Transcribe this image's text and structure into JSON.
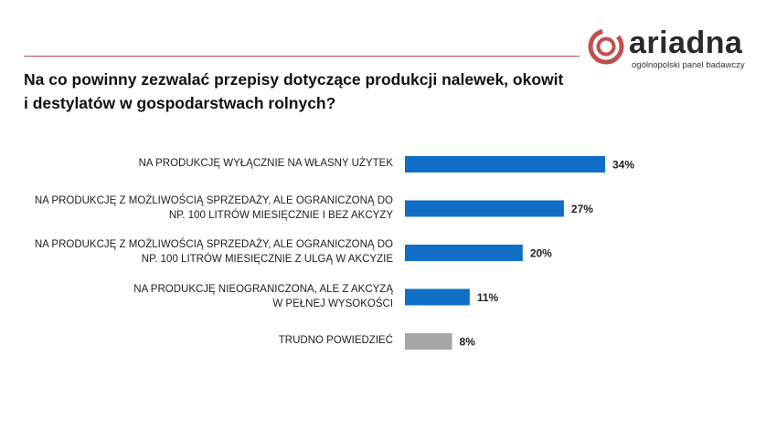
{
  "brand": {
    "name": "ariadna",
    "tagline": "ogólnopolski panel badawczy",
    "accent_color": "#c0504d"
  },
  "question": {
    "line1": "Na co powinny zezwalać przepisy dotyczące produkcji nalewek, okowit",
    "line2": "i destylatów w gospodarstwach rolnych?"
  },
  "chart_data": {
    "type": "bar",
    "orientation": "horizontal",
    "title": "Na co powinny zezwalać przepisy dotyczące produkcji nalewek, okowit i destylatów w gospodarstwach rolnych?",
    "categories": [
      [
        "NA PRODUKCJĘ WYŁĄCZNIE NA WŁASNY UŻYTEK"
      ],
      [
        "NA PRODUKCJĘ Z MOŻLIWOŚCIĄ SPRZEDAŻY, ALE OGRANICZONĄ DO",
        "NP. 100 LITRÓW MIESIĘCZNIE I BEZ AKCYZY"
      ],
      [
        "NA PRODUKCJĘ Z MOŻLIWOŚCIĄ SPRZEDAŻY, ALE OGRANICZONĄ DO",
        "NP. 100 LITRÓW MIESIĘCZNIE Z ULGĄ W AKCYZIE"
      ],
      [
        "NA PRODUKCJĘ NIEOGRANICZONA, ALE Z AKCYZĄ",
        "W PEŁNEJ WYSOKOŚCI"
      ],
      [
        "TRUDNO POWIEDZIEĆ"
      ]
    ],
    "values": [
      34,
      27,
      20,
      11,
      8
    ],
    "value_labels": [
      "34%",
      "27%",
      "20%",
      "11%",
      "8%"
    ],
    "colors": [
      "#0f6fc6",
      "#0f6fc6",
      "#0f6fc6",
      "#0f6fc6",
      "#a6a6a6"
    ],
    "unit": "%",
    "xlim": [
      0,
      34
    ],
    "xlabel": "",
    "ylabel": "",
    "grid": false,
    "legend": "none"
  }
}
